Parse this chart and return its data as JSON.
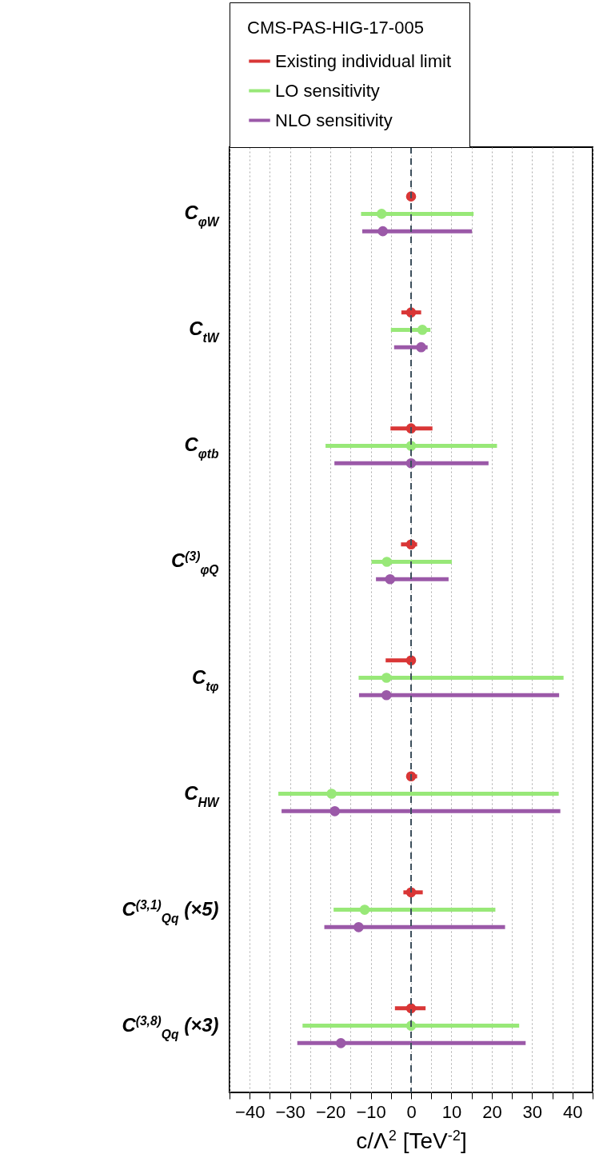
{
  "chart_data": {
    "type": "scatter",
    "orientation": "horizontal",
    "legend_title": "CMS-PAS-HIG-17-005",
    "legend": "top",
    "grid": "x",
    "marker": "circle",
    "xlabel": "c/Λ$^{2}$ [TeV$^{-2}$]",
    "categories": [
      "C$_{φW}$",
      "C$_{tW}$",
      "C$_{φtb}$",
      "C$^{(3)}$$_{φQ}$",
      "C$_{tφ}$",
      "C$_{HW}$",
      "C$^{(3,1)}$$_{Qq}$ (×5)",
      "C$^{(3,8)}$$_{Qq}$ (×3)"
    ],
    "xlim": [
      -45,
      45
    ],
    "xticks": [
      {
        "value": -45,
        "label": null
      },
      {
        "value": -40,
        "label": "−40"
      },
      {
        "value": -35,
        "label": null
      },
      {
        "value": -30,
        "label": "−30"
      },
      {
        "value": -25,
        "label": null
      },
      {
        "value": -20,
        "label": "−20"
      },
      {
        "value": -15,
        "label": null
      },
      {
        "value": -10,
        "label": "−10"
      },
      {
        "value": -5,
        "label": null
      },
      0,
      {
        "value": 5,
        "label": null
      },
      10,
      {
        "value": 15,
        "label": null
      },
      20,
      {
        "value": 25,
        "label": null
      },
      30,
      {
        "value": 35,
        "label": null
      },
      40,
      {
        "value": 45,
        "label": null
      }
    ],
    "ref_lines": [
      {
        "axis": "x",
        "value": 0,
        "color": "#3d4f5c",
        "line_style": "dashed"
      }
    ],
    "series": [
      {
        "name": "Existing individual limit",
        "color": "#d93636",
        "values": [
          0,
          0,
          0,
          0,
          0,
          0,
          0,
          0
        ],
        "errors": [
          null,
          [
            -2.4,
            2.5
          ],
          [
            -5.1,
            5.3
          ],
          [
            -2.5,
            1.5
          ],
          [
            -6.3,
            1.0
          ],
          [
            0,
            1.5
          ],
          [
            -1.9,
            2.9
          ],
          [
            -4.0,
            3.6
          ]
        ]
      },
      {
        "name": "LO sensitivity",
        "color": "#98e878",
        "values": [
          -7.3,
          2.8,
          0,
          -6.0,
          -6.1,
          -19.7,
          -11.5,
          0
        ],
        "errors": [
          [
            -12.4,
            15.5
          ],
          [
            -5.0,
            4.8
          ],
          [
            -21.2,
            21.3
          ],
          [
            -9.8,
            10.1
          ],
          [
            -13.0,
            37.8
          ],
          [
            -32.9,
            36.6
          ],
          [
            -19.2,
            20.9
          ],
          [
            -26.9,
            26.8
          ]
        ]
      },
      {
        "name": "NLO sensitivity",
        "color": "#9b59a8",
        "values": [
          -7.0,
          2.5,
          0,
          -5.2,
          -6.1,
          -18.9,
          -13.0,
          -17.4
        ],
        "errors": [
          [
            -12.1,
            15.1
          ],
          [
            -4.2,
            4.1
          ],
          [
            -19.0,
            19.2
          ],
          [
            -8.7,
            9.3
          ],
          [
            -12.9,
            36.7
          ],
          [
            -32.1,
            37.0
          ],
          [
            -21.5,
            23.3
          ],
          [
            -28.2,
            28.4
          ]
        ]
      }
    ]
  }
}
